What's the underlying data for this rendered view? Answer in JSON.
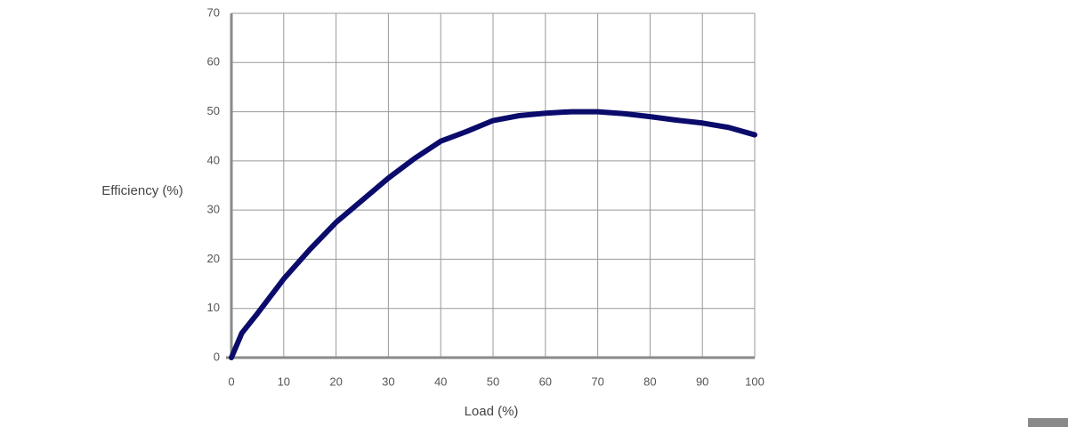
{
  "chart_data": {
    "type": "line",
    "xlabel": "Load (%)",
    "ylabel": "Efficiency (%)",
    "x": [
      0,
      2,
      5,
      10,
      15,
      20,
      25,
      30,
      35,
      40,
      45,
      50,
      55,
      60,
      65,
      70,
      75,
      80,
      85,
      90,
      95,
      100
    ],
    "values": [
      0,
      5,
      9,
      16,
      22,
      27.5,
      32,
      36.5,
      40.5,
      44,
      46,
      48.2,
      49.2,
      49.7,
      50,
      50,
      49.6,
      49,
      48.3,
      47.7,
      46.8,
      45.3
    ],
    "color": "#0b0b6b",
    "xlim": [
      0,
      100
    ],
    "xticks": [
      0,
      10,
      20,
      30,
      40,
      50,
      60,
      70,
      80,
      90,
      100
    ],
    "ylim": [
      0,
      70
    ],
    "yticks": [
      0,
      10,
      20,
      30,
      40,
      50,
      60,
      70
    ],
    "grid": true
  }
}
